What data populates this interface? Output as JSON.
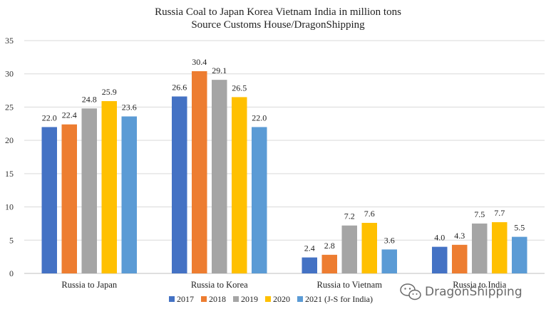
{
  "chart_data": {
    "type": "bar",
    "title": "Russia Coal to Japan Korea Vietnam India in million tons",
    "subtitle": "Source Customs House/DragonShipping",
    "categories": [
      "Russia to Japan",
      "Russia to Korea",
      "Russia to Vietnam",
      "Russia to India"
    ],
    "series": [
      {
        "name": "2017",
        "color": "#4472C4",
        "values": [
          22.0,
          26.6,
          2.4,
          4.0
        ]
      },
      {
        "name": "2018",
        "color": "#ED7D31",
        "values": [
          22.4,
          30.4,
          2.8,
          4.3
        ]
      },
      {
        "name": "2019",
        "color": "#A5A5A5",
        "values": [
          24.8,
          29.1,
          7.2,
          7.5
        ]
      },
      {
        "name": "2020",
        "color": "#FFC000",
        "values": [
          25.9,
          26.5,
          7.6,
          7.7
        ]
      },
      {
        "name": "2021 (J-S for India)",
        "color": "#5B9BD5",
        "values": [
          23.6,
          22.0,
          3.6,
          5.5
        ]
      }
    ],
    "ylim": [
      0,
      35
    ],
    "yticks": [
      0,
      5,
      10,
      15,
      20,
      25,
      30,
      35
    ],
    "grid": true,
    "legend": "bottom",
    "data_labels": true
  },
  "watermark": {
    "text": "DragonShipping",
    "icon": "wechat-icon"
  }
}
